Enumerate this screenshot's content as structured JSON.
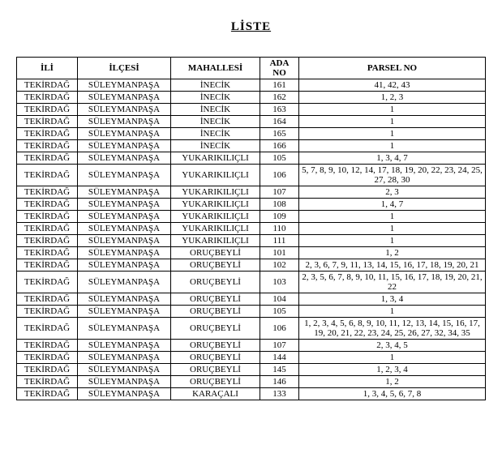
{
  "title": "LİSTE",
  "headers": {
    "il": "İLİ",
    "ilce": "İLÇESİ",
    "mahalle": "MAHALLESİ",
    "ada": "ADA NO",
    "parsel": "PARSEL NO"
  },
  "rows": [
    {
      "il": "TEKİRDAĞ",
      "ilce": "SÜLEYMANPAŞA",
      "mahalle": "İNECİK",
      "ada": "161",
      "parsel": "41, 42, 43"
    },
    {
      "il": "TEKİRDAĞ",
      "ilce": "SÜLEYMANPAŞA",
      "mahalle": "İNECİK",
      "ada": "162",
      "parsel": "1, 2, 3"
    },
    {
      "il": "TEKİRDAĞ",
      "ilce": "SÜLEYMANPAŞA",
      "mahalle": "İNECİK",
      "ada": "163",
      "parsel": "1"
    },
    {
      "il": "TEKİRDAĞ",
      "ilce": "SÜLEYMANPAŞA",
      "mahalle": "İNECİK",
      "ada": "164",
      "parsel": "1"
    },
    {
      "il": "TEKİRDAĞ",
      "ilce": "SÜLEYMANPAŞA",
      "mahalle": "İNECİK",
      "ada": "165",
      "parsel": "1"
    },
    {
      "il": "TEKİRDAĞ",
      "ilce": "SÜLEYMANPAŞA",
      "mahalle": "İNECİK",
      "ada": "166",
      "parsel": "1"
    },
    {
      "il": "TEKİRDAĞ",
      "ilce": "SÜLEYMANPAŞA",
      "mahalle": "YUKARIKILIÇLI",
      "ada": "105",
      "parsel": "1, 3, 4, 7"
    },
    {
      "il": "TEKİRDAĞ",
      "ilce": "SÜLEYMANPAŞA",
      "mahalle": "YUKARIKILIÇLI",
      "ada": "106",
      "parsel": "5, 7, 8, 9, 10, 12, 14, 17, 18, 19, 20, 22, 23, 24, 25, 27, 28, 30"
    },
    {
      "il": "TEKİRDAĞ",
      "ilce": "SÜLEYMANPAŞA",
      "mahalle": "YUKARIKILIÇLI",
      "ada": "107",
      "parsel": "2, 3"
    },
    {
      "il": "TEKİRDAĞ",
      "ilce": "SÜLEYMANPAŞA",
      "mahalle": "YUKARIKILIÇLI",
      "ada": "108",
      "parsel": "1, 4, 7"
    },
    {
      "il": "TEKİRDAĞ",
      "ilce": "SÜLEYMANPAŞA",
      "mahalle": "YUKARIKILIÇLI",
      "ada": "109",
      "parsel": "1"
    },
    {
      "il": "TEKİRDAĞ",
      "ilce": "SÜLEYMANPAŞA",
      "mahalle": "YUKARIKILIÇLI",
      "ada": "110",
      "parsel": "1"
    },
    {
      "il": "TEKİRDAĞ",
      "ilce": "SÜLEYMANPAŞA",
      "mahalle": "YUKARIKILIÇLI",
      "ada": "111",
      "parsel": "1"
    },
    {
      "il": "TEKİRDAĞ",
      "ilce": "SÜLEYMANPAŞA",
      "mahalle": "ORUÇBEYLİ",
      "ada": "101",
      "parsel": "1, 2"
    },
    {
      "il": "TEKİRDAĞ",
      "ilce": "SÜLEYMANPAŞA",
      "mahalle": "ORUÇBEYLİ",
      "ada": "102",
      "parsel": "2, 3, 6, 7, 9, 11, 13, 14, 15, 16, 17, 18, 19, 20, 21"
    },
    {
      "il": "TEKİRDAĞ",
      "ilce": "SÜLEYMANPAŞA",
      "mahalle": "ORUÇBEYLİ",
      "ada": "103",
      "parsel": "2, 3, 5, 6, 7, 8, 9, 10, 11, 15, 16, 17, 18, 19, 20, 21, 22"
    },
    {
      "il": "TEKİRDAĞ",
      "ilce": "SÜLEYMANPAŞA",
      "mahalle": "ORUÇBEYLİ",
      "ada": "104",
      "parsel": "1, 3, 4"
    },
    {
      "il": "TEKİRDAĞ",
      "ilce": "SÜLEYMANPAŞA",
      "mahalle": "ORUÇBEYLİ",
      "ada": "105",
      "parsel": "1"
    },
    {
      "il": "TEKİRDAĞ",
      "ilce": "SÜLEYMANPAŞA",
      "mahalle": "ORUÇBEYLİ",
      "ada": "106",
      "parsel": "1, 2, 3, 4, 5, 6, 8, 9, 10, 11, 12, 13, 14, 15, 16, 17, 19, 20, 21, 22, 23, 24, 25, 26, 27, 32, 34, 35"
    },
    {
      "il": "TEKİRDAĞ",
      "ilce": "SÜLEYMANPAŞA",
      "mahalle": "ORUÇBEYLİ",
      "ada": "107",
      "parsel": "2, 3, 4, 5"
    },
    {
      "il": "TEKİRDAĞ",
      "ilce": "SÜLEYMANPAŞA",
      "mahalle": "ORUÇBEYLİ",
      "ada": "144",
      "parsel": "1"
    },
    {
      "il": "TEKİRDAĞ",
      "ilce": "SÜLEYMANPAŞA",
      "mahalle": "ORUÇBEYLİ",
      "ada": "145",
      "parsel": "1, 2, 3, 4"
    },
    {
      "il": "TEKİRDAĞ",
      "ilce": "SÜLEYMANPAŞA",
      "mahalle": "ORUÇBEYLİ",
      "ada": "146",
      "parsel": "1, 2"
    },
    {
      "il": "TEKİRDAĞ",
      "ilce": "SÜLEYMANPAŞA",
      "mahalle": "KARAÇALI",
      "ada": "133",
      "parsel": "1, 3, 4, 5, 6, 7, 8"
    }
  ]
}
